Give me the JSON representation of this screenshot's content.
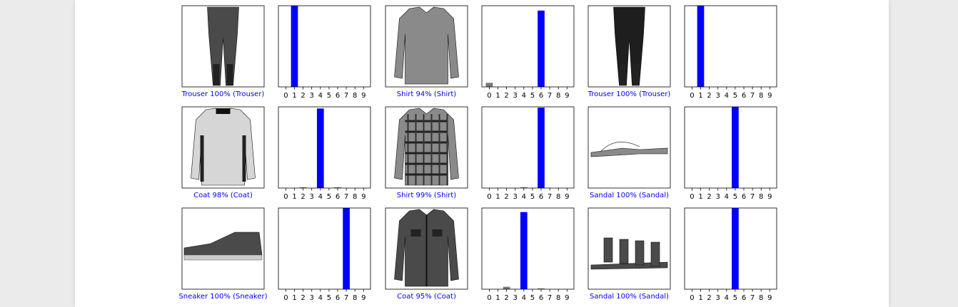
{
  "colors": {
    "correct_label": "#0000ff",
    "highlight_bar": "#0000ff",
    "other_bar": "#777777",
    "frame": "#000000"
  },
  "chart_data": [
    {
      "type": "image",
      "panel": "image",
      "caption": "Trouser 100% (Trouser)",
      "depicts": "trouser",
      "shade": "dark"
    },
    {
      "type": "bar",
      "panel": "probabilities",
      "categories": [
        "0",
        "1",
        "2",
        "3",
        "4",
        "5",
        "6",
        "7",
        "8",
        "9"
      ],
      "values": [
        0,
        1.0,
        0,
        0,
        0,
        0,
        0,
        0,
        0,
        0
      ],
      "highlight": 1,
      "ylim": [
        0,
        1
      ]
    },
    {
      "type": "image",
      "panel": "image",
      "caption": "Shirt 94% (Shirt)",
      "depicts": "shirt",
      "shade": "grey"
    },
    {
      "type": "bar",
      "panel": "probabilities",
      "categories": [
        "0",
        "1",
        "2",
        "3",
        "4",
        "5",
        "6",
        "7",
        "8",
        "9"
      ],
      "values": [
        0.05,
        0,
        0,
        0,
        0,
        0,
        0.94,
        0,
        0,
        0
      ],
      "highlight": 6,
      "ylim": [
        0,
        1
      ]
    },
    {
      "type": "image",
      "panel": "image",
      "caption": "Trouser 100% (Trouser)",
      "depicts": "trouser",
      "shade": "black"
    },
    {
      "type": "bar",
      "panel": "probabilities",
      "categories": [
        "0",
        "1",
        "2",
        "3",
        "4",
        "5",
        "6",
        "7",
        "8",
        "9"
      ],
      "values": [
        0,
        1.0,
        0,
        0,
        0,
        0,
        0,
        0,
        0,
        0
      ],
      "highlight": 1,
      "ylim": [
        0,
        1
      ]
    },
    {
      "type": "image",
      "panel": "image",
      "caption": "Coat 98% (Coat)",
      "depicts": "coat",
      "shade": "light"
    },
    {
      "type": "bar",
      "panel": "probabilities",
      "categories": [
        "0",
        "1",
        "2",
        "3",
        "4",
        "5",
        "6",
        "7",
        "8",
        "9"
      ],
      "values": [
        0,
        0,
        0.01,
        0,
        0.98,
        0,
        0.01,
        0,
        0,
        0
      ],
      "highlight": 4,
      "ylim": [
        0,
        1
      ]
    },
    {
      "type": "image",
      "panel": "image",
      "caption": "Shirt 99% (Shirt)",
      "depicts": "plaid-shirt",
      "shade": "grey"
    },
    {
      "type": "bar",
      "panel": "probabilities",
      "categories": [
        "0",
        "1",
        "2",
        "3",
        "4",
        "5",
        "6",
        "7",
        "8",
        "9"
      ],
      "values": [
        0,
        0,
        0,
        0,
        0.01,
        0,
        0.99,
        0,
        0,
        0
      ],
      "highlight": 6,
      "ylim": [
        0,
        1
      ]
    },
    {
      "type": "image",
      "panel": "image",
      "caption": "Sandal 100% (Sandal)",
      "depicts": "flip-flop",
      "shade": "grey"
    },
    {
      "type": "bar",
      "panel": "probabilities",
      "categories": [
        "0",
        "1",
        "2",
        "3",
        "4",
        "5",
        "6",
        "7",
        "8",
        "9"
      ],
      "values": [
        0,
        0,
        0,
        0,
        0,
        1.0,
        0,
        0,
        0,
        0
      ],
      "highlight": 5,
      "ylim": [
        0,
        1
      ]
    },
    {
      "type": "image",
      "panel": "image",
      "caption": "Sneaker 100% (Sneaker)",
      "depicts": "sneaker",
      "shade": "dark"
    },
    {
      "type": "bar",
      "panel": "probabilities",
      "categories": [
        "0",
        "1",
        "2",
        "3",
        "4",
        "5",
        "6",
        "7",
        "8",
        "9"
      ],
      "values": [
        0,
        0,
        0,
        0,
        0,
        0,
        0,
        1.0,
        0,
        0
      ],
      "highlight": 7,
      "ylim": [
        0,
        1
      ]
    },
    {
      "type": "image",
      "panel": "image",
      "caption": "Coat 95% (Coat)",
      "depicts": "jacket",
      "shade": "dark"
    },
    {
      "type": "bar",
      "panel": "probabilities",
      "categories": [
        "0",
        "1",
        "2",
        "3",
        "4",
        "5",
        "6",
        "7",
        "8",
        "9"
      ],
      "values": [
        0,
        0,
        0.03,
        0,
        0.95,
        0,
        0.01,
        0,
        0,
        0
      ],
      "highlight": 4,
      "ylim": [
        0,
        1
      ]
    },
    {
      "type": "image",
      "panel": "image",
      "caption": "Sandal 100% (Sandal)",
      "depicts": "sandal",
      "shade": "dark"
    },
    {
      "type": "bar",
      "panel": "probabilities",
      "categories": [
        "0",
        "1",
        "2",
        "3",
        "4",
        "5",
        "6",
        "7",
        "8",
        "9"
      ],
      "values": [
        0,
        0,
        0,
        0,
        0,
        1.0,
        0,
        0,
        0,
        0
      ],
      "highlight": 5,
      "ylim": [
        0,
        1
      ]
    }
  ]
}
